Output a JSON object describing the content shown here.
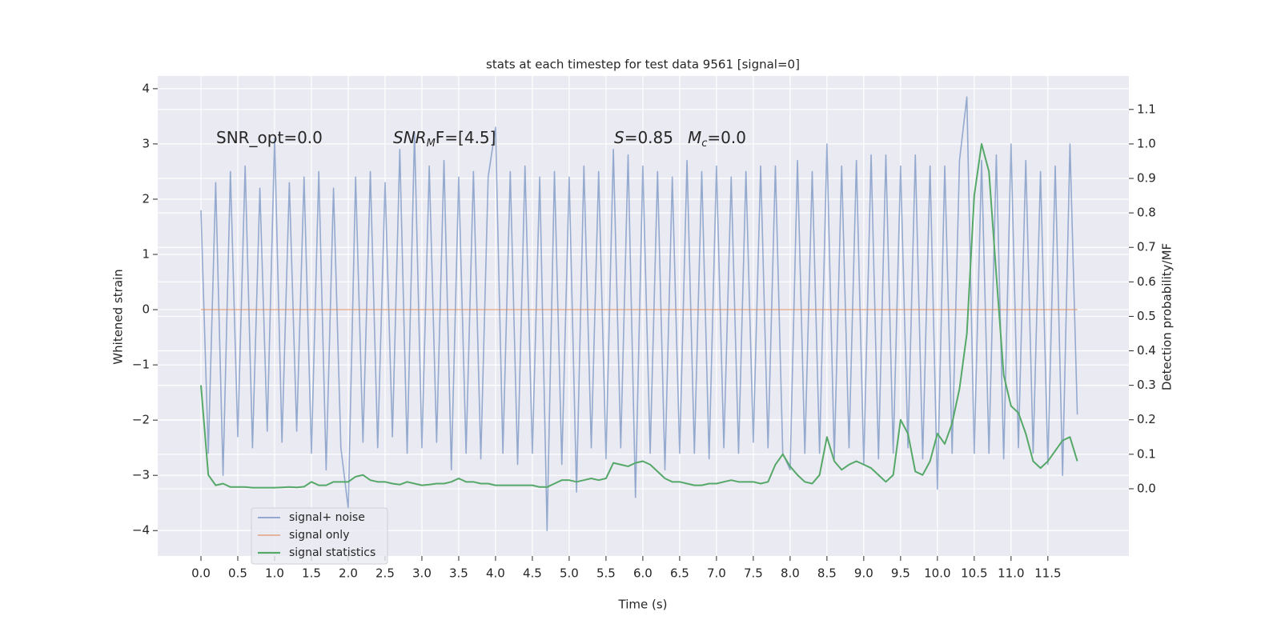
{
  "chart_data": {
    "type": "line",
    "title": "stats at each timestep for test data 9561 [signal=0]",
    "xlabel": "Time (s)",
    "ylabel": "Whitened strain",
    "y2label": "Detection probability/MF",
    "grid": true,
    "legend": "lower left",
    "xlim": [
      -0.587,
      12.6
    ],
    "ylim": [
      -4.46,
      4.23
    ],
    "y2lim": [
      -0.195,
      1.197
    ],
    "xticks": [
      {
        "value": 0,
        "label": "0.0"
      },
      {
        "value": 0.5,
        "label": "0.5"
      },
      {
        "value": 1,
        "label": "1.0"
      },
      {
        "value": 1.5,
        "label": "1.5"
      },
      {
        "value": 2,
        "label": "2.0"
      },
      {
        "value": 2.5,
        "label": "2.5"
      },
      {
        "value": 3,
        "label": "3.0"
      },
      {
        "value": 3.5,
        "label": "3.5"
      },
      {
        "value": 4,
        "label": "4.0"
      },
      {
        "value": 4.5,
        "label": "4.5"
      },
      {
        "value": 5,
        "label": "5.0"
      },
      {
        "value": 5.5,
        "label": "5.5"
      },
      {
        "value": 6,
        "label": "6.0"
      },
      {
        "value": 6.5,
        "label": "6.5"
      },
      {
        "value": 7,
        "label": "7.0"
      },
      {
        "value": 7.5,
        "label": "7.5"
      },
      {
        "value": 8,
        "label": "8.0"
      },
      {
        "value": 8.5,
        "label": "8.5"
      },
      {
        "value": 9,
        "label": "9.0"
      },
      {
        "value": 9.5,
        "label": "9.5"
      },
      {
        "value": 10,
        "label": "10.0"
      },
      {
        "value": 10.5,
        "label": "10.5"
      },
      {
        "value": 11,
        "label": "11.0"
      },
      {
        "value": 11.5,
        "label": "11.5"
      }
    ],
    "yticks": [
      {
        "value": -4,
        "label": "−4"
      },
      {
        "value": -3,
        "label": "−3"
      },
      {
        "value": -2,
        "label": "−2"
      },
      {
        "value": -1,
        "label": "−1"
      },
      0,
      1,
      2,
      3,
      4
    ],
    "y2ticks": [
      {
        "value": 0,
        "label": "0.0"
      },
      {
        "value": 0.1,
        "label": "0.1"
      },
      {
        "value": 0.2,
        "label": "0.2"
      },
      {
        "value": 0.3,
        "label": "0.3"
      },
      {
        "value": 0.4,
        "label": "0.4"
      },
      {
        "value": 0.5,
        "label": "0.5"
      },
      {
        "value": 0.6,
        "label": "0.6"
      },
      {
        "value": 0.7,
        "label": "0.7"
      },
      {
        "value": 0.8,
        "label": "0.8"
      },
      {
        "value": 0.9,
        "label": "0.9"
      },
      {
        "value": 1,
        "label": "1.0"
      },
      {
        "value": 1.1,
        "label": "1.1"
      }
    ],
    "annotations": [
      {
        "parts": [
          "SNR_opt=0.0"
        ]
      },
      {
        "parts": [
          "SNR",
          "M",
          "F=[4.5]"
        ]
      },
      {
        "parts": [
          "S",
          "=0.85"
        ]
      },
      {
        "parts": [
          "M",
          "c",
          "=0.0"
        ]
      }
    ],
    "x": [
      0,
      0.1,
      0.2,
      0.3,
      0.4,
      0.5,
      0.6,
      0.7,
      0.8,
      0.9,
      1,
      1.1,
      1.2,
      1.3,
      1.4,
      1.5,
      1.6,
      1.7,
      1.8,
      1.9,
      2,
      2.1,
      2.2,
      2.3,
      2.4,
      2.5,
      2.6,
      2.7,
      2.8,
      2.9,
      3,
      3.1,
      3.2,
      3.3,
      3.4,
      3.5,
      3.6,
      3.7,
      3.8,
      3.9,
      4,
      4.1,
      4.2,
      4.3,
      4.4,
      4.5,
      4.6,
      4.7,
      4.8,
      4.9,
      5,
      5.1,
      5.2,
      5.3,
      5.4,
      5.5,
      5.6,
      5.7,
      5.8,
      5.9,
      6,
      6.1,
      6.2,
      6.3,
      6.4,
      6.5,
      6.6,
      6.7,
      6.8,
      6.9,
      7,
      7.1,
      7.2,
      7.3,
      7.4,
      7.5,
      7.6,
      7.7,
      7.8,
      7.9,
      8,
      8.1,
      8.2,
      8.3,
      8.4,
      8.5,
      8.6,
      8.7,
      8.8,
      8.9,
      9,
      9.1,
      9.2,
      9.3,
      9.4,
      9.5,
      9.6,
      9.7,
      9.8,
      9.9,
      10,
      10.1,
      10.2,
      10.3,
      10.4,
      10.5,
      10.6,
      10.7,
      10.8,
      10.9,
      11,
      11.1,
      11.2,
      11.3,
      11.4,
      11.5,
      11.6,
      11.7,
      11.8,
      11.9
    ],
    "series": [
      {
        "name": "signal+ noise",
        "color": "#4c72b0",
        "axis": "y",
        "values": [
          1.8,
          -2.6,
          2.3,
          -3.0,
          2.5,
          -2.3,
          2.6,
          -2.5,
          2.2,
          -2.2,
          3.1,
          -2.4,
          2.3,
          -2.2,
          2.4,
          -2.6,
          2.5,
          -2.9,
          2.2,
          -2.5,
          -3.6,
          2.4,
          -2.4,
          2.5,
          -2.5,
          2.3,
          -2.3,
          2.9,
          -2.6,
          3.2,
          -2.5,
          2.6,
          -2.4,
          2.7,
          -2.9,
          2.4,
          -2.6,
          2.5,
          -2.7,
          2.4,
          3.3,
          -2.6,
          2.5,
          -2.8,
          2.6,
          -2.6,
          2.4,
          -4.0,
          2.5,
          -2.8,
          2.4,
          -3.3,
          2.6,
          -2.5,
          2.5,
          -2.7,
          2.9,
          -2.5,
          2.8,
          -3.4,
          2.6,
          -2.6,
          2.5,
          -2.9,
          2.4,
          -2.6,
          2.7,
          -2.6,
          2.5,
          -2.7,
          2.6,
          -2.5,
          2.4,
          -2.6,
          2.5,
          -2.4,
          2.6,
          -2.5,
          2.6,
          -2.6,
          -2.9,
          2.7,
          -2.6,
          2.5,
          -2.6,
          3.0,
          -2.7,
          2.6,
          -2.5,
          2.7,
          -2.8,
          2.8,
          -2.7,
          2.8,
          -2.6,
          2.6,
          -2.5,
          2.8,
          -2.7,
          2.6,
          -3.25,
          2.6,
          -2.6,
          2.7,
          3.85,
          -2.6,
          2.7,
          -2.6,
          2.8,
          -2.7,
          3.0,
          -2.5,
          2.7,
          -2.6,
          2.5,
          -2.8,
          2.6,
          -3.0,
          3.0,
          -1.9
        ]
      },
      {
        "name": "signal only",
        "color": "#dd8452",
        "axis": "y",
        "values": [
          0,
          0,
          0,
          0,
          0,
          0,
          0,
          0,
          0,
          0,
          0,
          0,
          0,
          0,
          0,
          0,
          0,
          0,
          0,
          0,
          0,
          0,
          0,
          0,
          0,
          0,
          0,
          0,
          0,
          0,
          0,
          0,
          0,
          0,
          0,
          0,
          0,
          0,
          0,
          0,
          0,
          0,
          0,
          0,
          0,
          0,
          0,
          0,
          0,
          0,
          0,
          0,
          0,
          0,
          0,
          0,
          0,
          0,
          0,
          0,
          0,
          0,
          0,
          0,
          0,
          0,
          0,
          0,
          0,
          0,
          0,
          0,
          0,
          0,
          0,
          0,
          0,
          0,
          0,
          0,
          0,
          0,
          0,
          0,
          0,
          0,
          0,
          0,
          0,
          0,
          0,
          0,
          0,
          0,
          0,
          0,
          0,
          0,
          0,
          0,
          0,
          0,
          0,
          0,
          0,
          0,
          0,
          0,
          0,
          0,
          0,
          0,
          0,
          0,
          0,
          0,
          0,
          0,
          0,
          0
        ]
      },
      {
        "name": "signal statistics",
        "color": "#55a868",
        "axis": "y2",
        "values": [
          0.3,
          0.04,
          0.01,
          0.015,
          0.005,
          0.005,
          0.005,
          0.003,
          0.003,
          0.003,
          0.003,
          0.004,
          0.005,
          0.004,
          0.006,
          0.02,
          0.01,
          0.01,
          0.02,
          0.02,
          0.02,
          0.035,
          0.04,
          0.025,
          0.02,
          0.02,
          0.015,
          0.012,
          0.02,
          0.015,
          0.01,
          0.012,
          0.015,
          0.015,
          0.02,
          0.03,
          0.02,
          0.02,
          0.015,
          0.015,
          0.01,
          0.01,
          0.01,
          0.01,
          0.01,
          0.01,
          0.005,
          0.005,
          0.015,
          0.025,
          0.025,
          0.02,
          0.025,
          0.03,
          0.025,
          0.03,
          0.075,
          0.07,
          0.065,
          0.075,
          0.08,
          0.07,
          0.05,
          0.03,
          0.02,
          0.02,
          0.015,
          0.01,
          0.01,
          0.015,
          0.015,
          0.02,
          0.025,
          0.02,
          0.02,
          0.02,
          0.015,
          0.02,
          0.07,
          0.1,
          0.065,
          0.04,
          0.02,
          0.015,
          0.04,
          0.15,
          0.08,
          0.055,
          0.07,
          0.08,
          0.07,
          0.06,
          0.04,
          0.02,
          0.04,
          0.2,
          0.16,
          0.05,
          0.04,
          0.08,
          0.16,
          0.13,
          0.19,
          0.29,
          0.45,
          0.85,
          1.0,
          0.92,
          0.62,
          0.33,
          0.24,
          0.22,
          0.16,
          0.08,
          0.06,
          0.08,
          0.11,
          0.14,
          0.15,
          0.08
        ]
      }
    ]
  }
}
